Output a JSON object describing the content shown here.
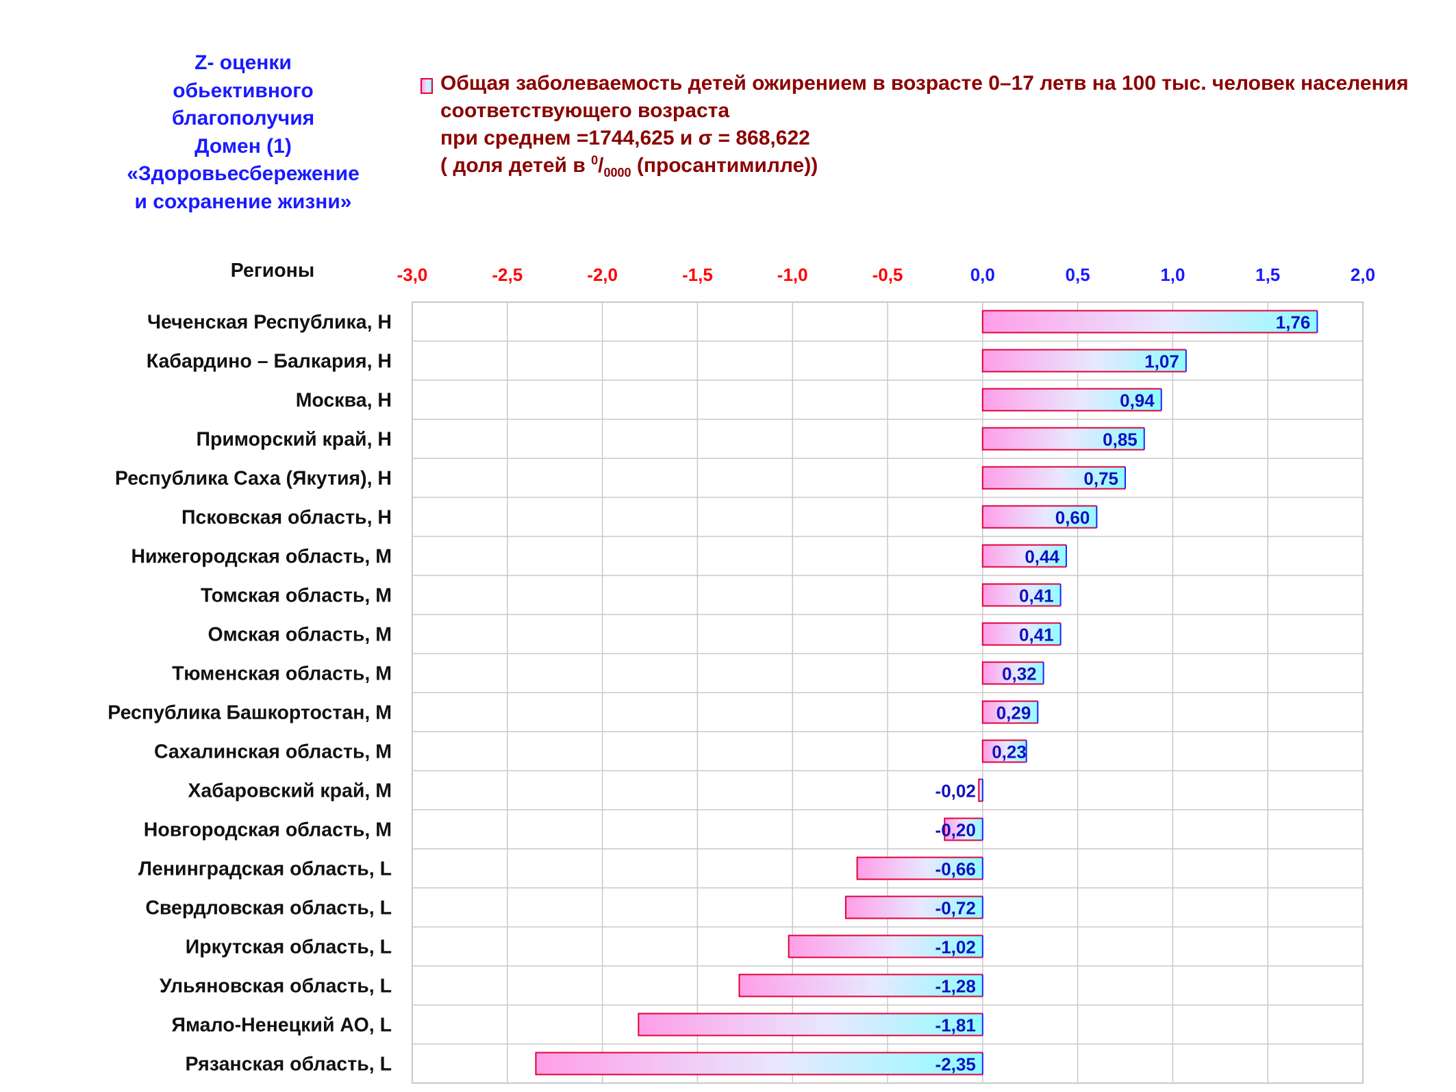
{
  "side_title": [
    "Z- оценки",
    "обьективного",
    "благополучия",
    "Домен (1)",
    "«Здоровьесбережение",
    "и сохранение жизни»"
  ],
  "legend": {
    "line1": "Общая заболеваемость детей ожирением в возрасте 0–17 летв на 100 тыс. человек населения",
    "line2": "соответствующего возраста",
    "line3": "при среднем =1744,625  и σ = 868,622",
    "line4_prefix": "(  доля детей в ",
    "line4_sup": "0",
    "line4_slash": "/",
    "line4_sub": "0000",
    "line4_suffix": " (просантимилле))"
  },
  "colors": {
    "title": "#1a1aff",
    "legend_text": "#8b0000",
    "negative_tick": "#ff0000",
    "positive_tick": "#1a1aff",
    "bar_border_left": "#e0003a",
    "bar_border_right": "#2020ff",
    "bar_grad_start": "#ff9ee8",
    "bar_grad_mid": "#e8e8ff",
    "bar_grad_end": "#8ffcff",
    "value_label": "#1010c0",
    "grid": "#c8c8c8"
  },
  "chart_data": {
    "type": "bar",
    "orientation": "horizontal",
    "category_header": "Регионы",
    "categories": [
      "Чеченская Республика,  H",
      "Кабардино – Балкария,  H",
      "Москва,  H",
      "Приморский край,  H",
      "Республика Саха (Якутия),  H",
      "Псковская область,  H",
      "Нижегородская область,  M",
      "Томская область,  M",
      "Омская область,  M",
      "Тюменская область,  M",
      "Республика Башкортостан,  M",
      "Сахалинская область,  M",
      "Хабаровский край,  M",
      "Новгородская область,  M",
      "Ленинградская область,  L",
      "Свердловская область,  L",
      "Иркутская область,  L",
      "Ульяновская область,  L",
      "Ямало-Ненецкий АО,  L",
      "Рязанская область,  L"
    ],
    "values": [
      1.76,
      1.07,
      0.94,
      0.85,
      0.75,
      0.6,
      0.44,
      0.41,
      0.41,
      0.32,
      0.29,
      0.23,
      -0.02,
      -0.2,
      -0.66,
      -0.72,
      -1.02,
      -1.28,
      -1.81,
      -2.35
    ],
    "value_labels": [
      "1,76",
      "1,07",
      "0,94",
      "0,85",
      "0,75",
      "0,60",
      "0,44",
      "0,41",
      "0,41",
      "0,32",
      "0,29",
      "0,23",
      "-0,02",
      "-0,20",
      "-0,66",
      "-0,72",
      "-1,02",
      "-1,28",
      "-1,81",
      "-2,35"
    ],
    "xlim": [
      -3.0,
      2.0
    ],
    "xticks": [
      -3.0,
      -2.5,
      -2.0,
      -1.5,
      -1.0,
      -0.5,
      0.0,
      0.5,
      1.0,
      1.5,
      2.0
    ],
    "xtick_labels": [
      "-3,0",
      "-2,5",
      "-2,0",
      "-1,5",
      "-1,0",
      "-0,5",
      "0,0",
      "0,5",
      "1,0",
      "1,5",
      "2,0"
    ],
    "xaxis_position": "top",
    "grid": true
  }
}
